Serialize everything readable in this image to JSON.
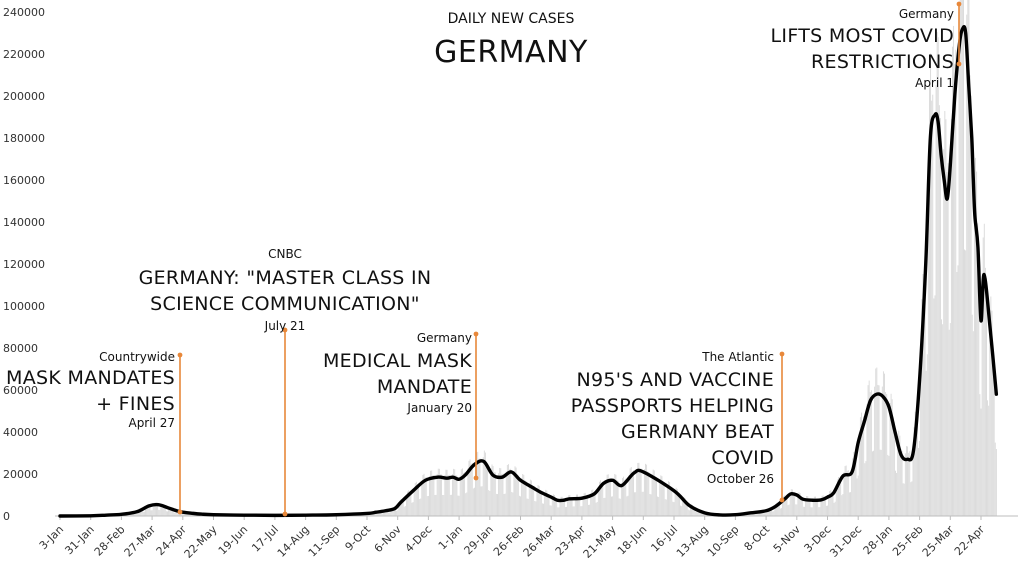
{
  "chart_data": {
    "type": "line",
    "title": "DAILY NEW CASES",
    "subtitle": "GERMANY",
    "ylim": [
      0,
      240000
    ],
    "y_ticks": [
      0,
      20000,
      40000,
      60000,
      80000,
      100000,
      120000,
      140000,
      160000,
      180000,
      200000,
      220000,
      240000
    ],
    "x_tick_labels": [
      "3-Jan",
      "31-Jan",
      "28-Feb",
      "27-Mar",
      "24-Apr",
      "22-May",
      "19-Jun",
      "17-Jul",
      "14-Aug",
      "11-Sep",
      "9-Oct",
      "6-Nov",
      "4-Dec",
      "1-Jan",
      "29-Jan",
      "26-Feb",
      "26-Mar",
      "23-Apr",
      "21-May",
      "18-Jun",
      "16-Jul",
      "13-Aug",
      "10-Sep",
      "8-Oct",
      "5-Nov",
      "3-Dec",
      "31-Dec",
      "28-Jan",
      "25-Feb",
      "25-Mar",
      "22-Apr"
    ],
    "grid": false,
    "series": [
      {
        "kind": "7-day average",
        "color": "#000000",
        "x": [
          0,
          1,
          1.5,
          2,
          2.5,
          2.9,
          3.2,
          3.5,
          3.8,
          4.0,
          4.3,
          4.6,
          5,
          6,
          7,
          8,
          9,
          10,
          10.3,
          10.6,
          10.9,
          11.1,
          11.5,
          11.9,
          12.3,
          12.6,
          12.8,
          13.0,
          13.2,
          13.5,
          13.8,
          14.1,
          14.4,
          14.7,
          15.0,
          15.4,
          15.7,
          16.0,
          16.2,
          16.4,
          16.6,
          17.0,
          17.4,
          17.7,
          18.0,
          18.3,
          18.7,
          19,
          20,
          20.5,
          21,
          21.5,
          22,
          22.5,
          23,
          23.3,
          23.6,
          23.8,
          24.0,
          24.2,
          24.5,
          24.8,
          25.0,
          25.2,
          25.5,
          25.8,
          26.0,
          26.2,
          26.4,
          26.6,
          26.8,
          27.0,
          27.2,
          27.4,
          27.6,
          27.8,
          28.0,
          28.2,
          28.35,
          28.5,
          28.6,
          28.7,
          28.8,
          28.9,
          29.0,
          29.15,
          29.3,
          29.4,
          29.5,
          29.6,
          29.7,
          29.75,
          29.8,
          29.9,
          30.0,
          30.1,
          30.3,
          30.5
        ],
        "values": [
          0,
          100,
          400,
          800,
          2000,
          4800,
          5400,
          4000,
          2500,
          1800,
          1300,
          900,
          600,
          400,
          300,
          400,
          600,
          1200,
          1800,
          2500,
          3500,
          6500,
          12000,
          17000,
          18500,
          18000,
          18500,
          17500,
          19500,
          24500,
          26000,
          19500,
          18500,
          21000,
          17000,
          13500,
          11000,
          9000,
          7500,
          7500,
          8200,
          8500,
          10500,
          15500,
          17000,
          14500,
          20500,
          21000,
          12000,
          5000,
          1500,
          500,
          600,
          1500,
          2500,
          4500,
          8000,
          10500,
          10000,
          8000,
          7500,
          7700,
          9000,
          11000,
          19000,
          21000,
          35000,
          45000,
          55000,
          58000,
          57000,
          52000,
          40000,
          29000,
          27000,
          31000,
          65000,
          120000,
          180000,
          191000,
          188000,
          172000,
          160000,
          151000,
          167000,
          201000,
          225000,
          232000,
          230000,
          205000,
          180000,
          160000,
          143000,
          128000,
          93000,
          115000,
          89000,
          58000
        ]
      }
    ],
    "annotations": [
      {
        "source": "Countrywide",
        "lines": [
          "MASK MANDATES",
          "+ FINES"
        ],
        "date_label": "April 27",
        "color": "#e8883a"
      },
      {
        "source": "CNBC",
        "lines": [
          "GERMANY: \"MASTER CLASS IN",
          "SCIENCE COMMUNICATION\""
        ],
        "date_label": "July 21",
        "color": "#e8883a"
      },
      {
        "source": "Germany",
        "lines": [
          "MEDICAL MASK",
          "MANDATE"
        ],
        "date_label": "January 20",
        "color": "#e8883a"
      },
      {
        "source": "The Atlantic",
        "lines": [
          "N95'S AND VACCINE",
          "PASSPORTS HELPING",
          "GERMANY BEAT",
          "COVID"
        ],
        "date_label": "October 26",
        "color": "#e8883a"
      },
      {
        "source": "Germany",
        "lines": [
          "LIFTS MOST COVID",
          "RESTRICTIONS"
        ],
        "date_label": "April 1",
        "color": "#e8883a"
      }
    ]
  }
}
